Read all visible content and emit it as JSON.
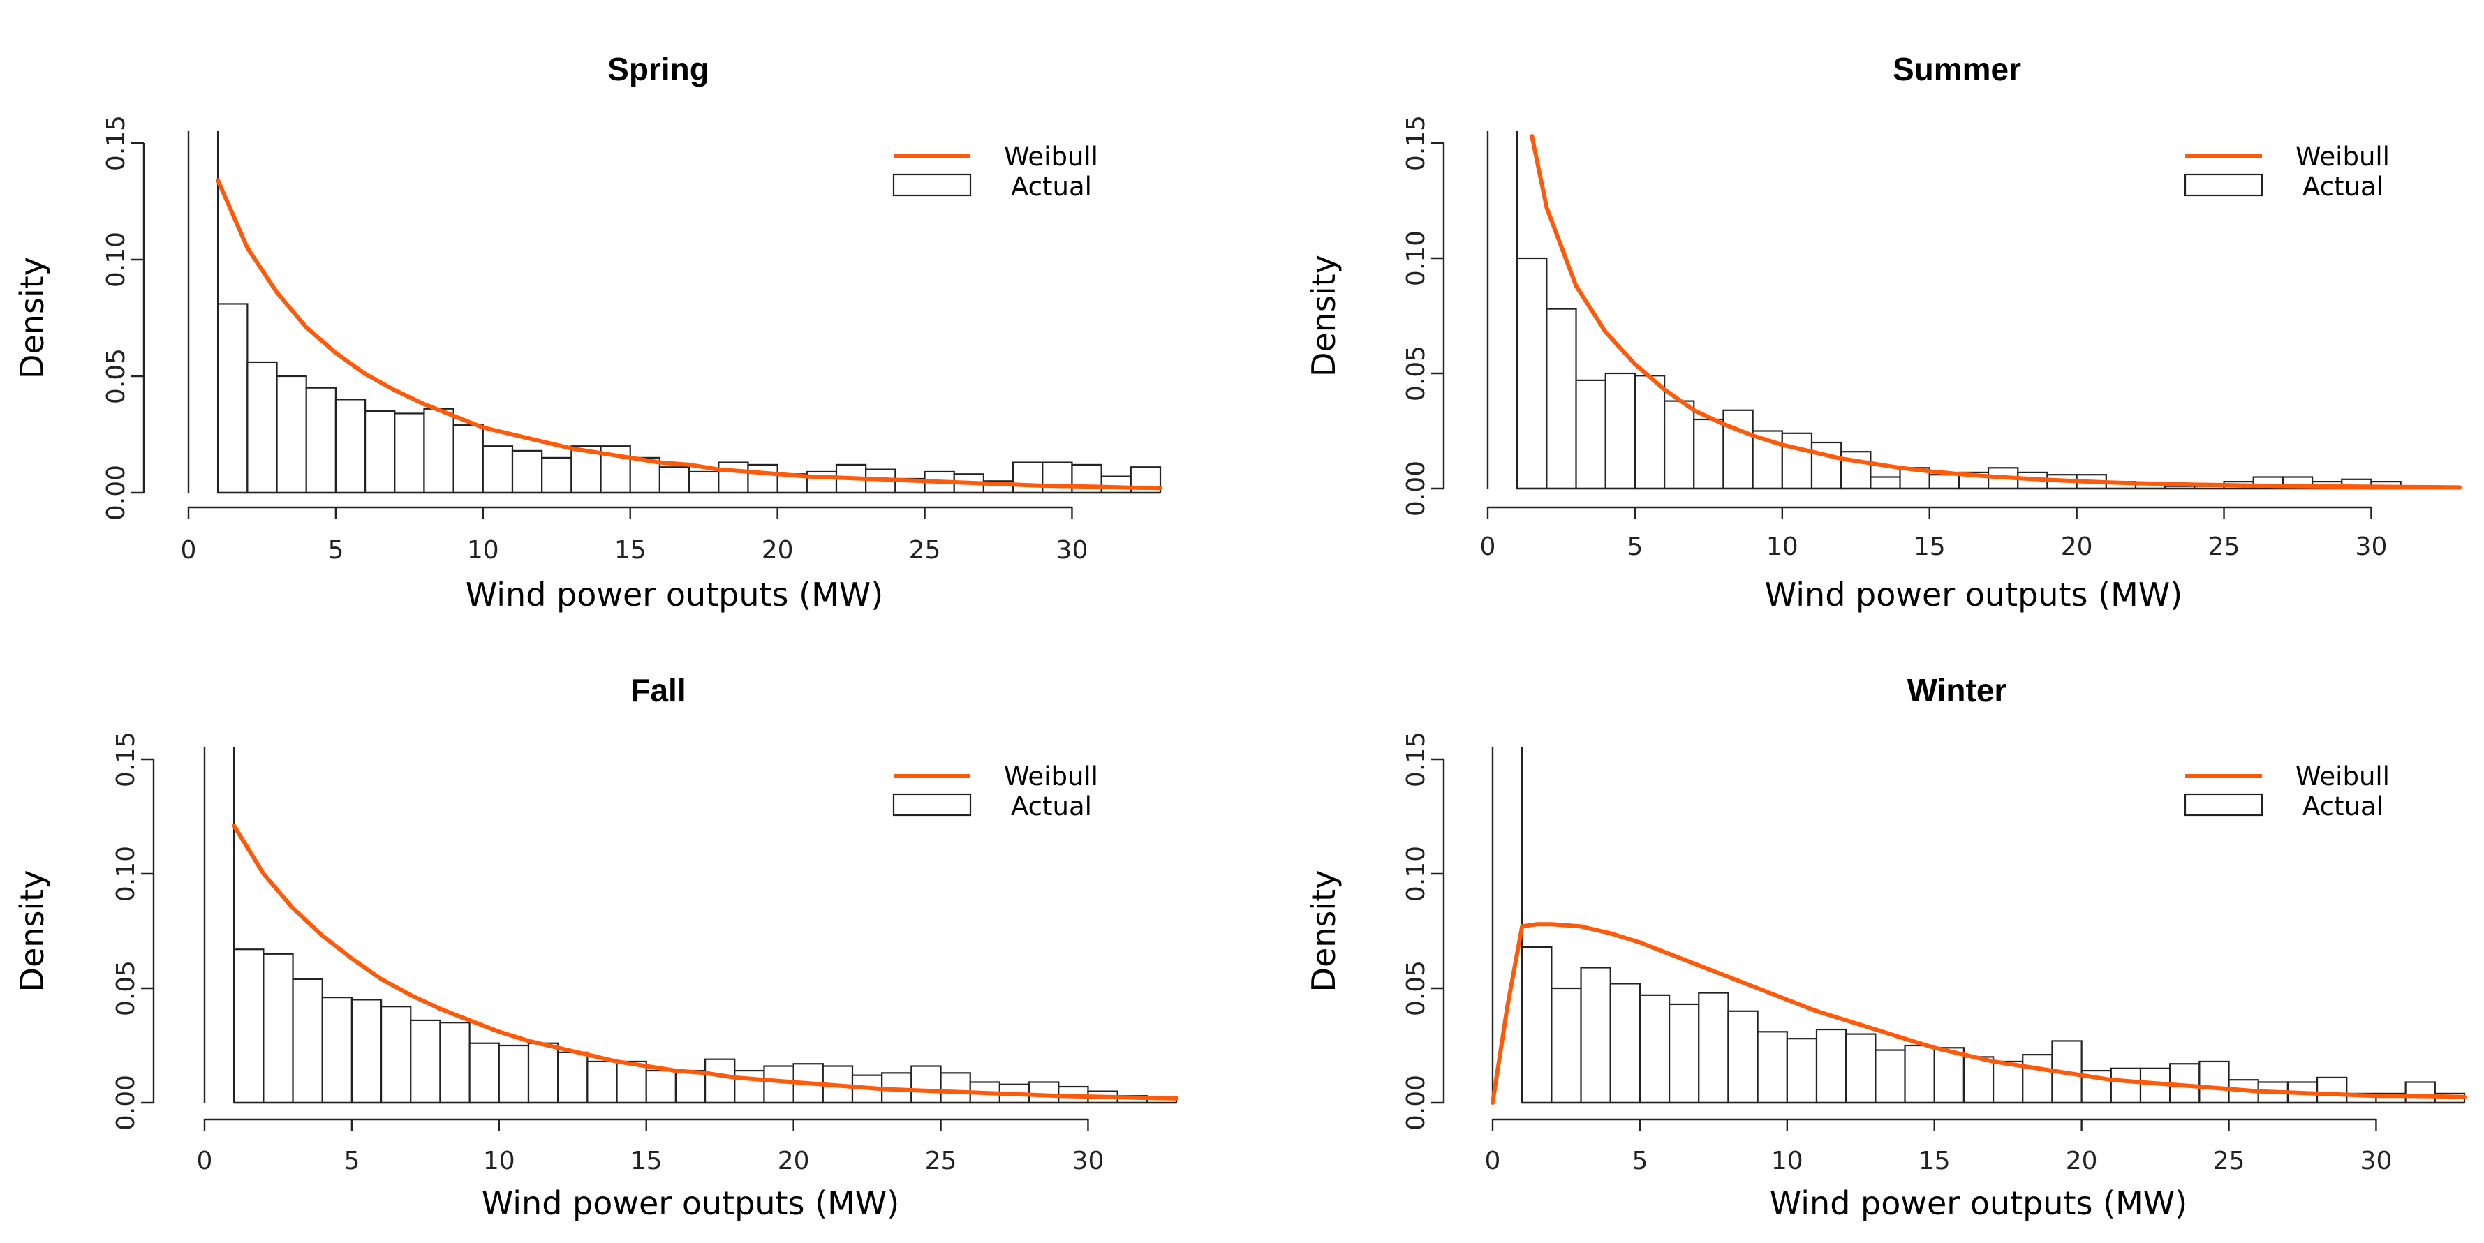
{
  "chart_data": [
    {
      "type": "bar",
      "title": "Spring",
      "xlabel": "Wind power outputs (MW)",
      "ylabel": "Density",
      "xlim": [
        0,
        33
      ],
      "ylim": [
        0,
        0.15
      ],
      "xticks": [
        "0",
        "5",
        "10",
        "15",
        "20",
        "25",
        "30"
      ],
      "yticks": [
        "0.00",
        "0.05",
        "0.10",
        "0.15"
      ],
      "legend": {
        "position": "top-right",
        "entries": [
          {
            "label": "Weibull",
            "kind": "line",
            "color": "#ff5a0a"
          },
          {
            "label": "Actual",
            "kind": "box"
          }
        ]
      },
      "vertical_line_at": 1,
      "bins": {
        "start": 1,
        "width": 1
      },
      "values": [
        0.081,
        0.056,
        0.05,
        0.045,
        0.04,
        0.035,
        0.034,
        0.036,
        0.029,
        0.02,
        0.018,
        0.015,
        0.02,
        0.02,
        0.015,
        0.011,
        0.009,
        0.013,
        0.012,
        0.008,
        0.009,
        0.012,
        0.01,
        0.006,
        0.009,
        0.008,
        0.005,
        0.013,
        0.013,
        0.012,
        0.007,
        0.011
      ],
      "weibull": {
        "x0": 1,
        "x": [
          1,
          2,
          3,
          4,
          5,
          6,
          7,
          8,
          9,
          10,
          11,
          12,
          13,
          14,
          15,
          16,
          17,
          18,
          19,
          20,
          21,
          22,
          23,
          24,
          25,
          26,
          27,
          28,
          29,
          30,
          31,
          32,
          33
        ],
        "y": [
          0.134,
          0.105,
          0.086,
          0.071,
          0.06,
          0.051,
          0.044,
          0.038,
          0.033,
          0.028,
          0.025,
          0.022,
          0.019,
          0.017,
          0.015,
          0.013,
          0.012,
          0.01,
          0.009,
          0.008,
          0.007,
          0.0065,
          0.006,
          0.0055,
          0.005,
          0.0045,
          0.004,
          0.0035,
          0.003,
          0.0028,
          0.0025,
          0.0022,
          0.002
        ]
      }
    },
    {
      "type": "bar",
      "title": "Summer",
      "xlabel": "Wind power outputs (MW)",
      "ylabel": "Density",
      "xlim": [
        0,
        33
      ],
      "ylim": [
        0,
        0.15
      ],
      "xticks": [
        "0",
        "5",
        "10",
        "15",
        "20",
        "25",
        "30"
      ],
      "yticks": [
        "0.00",
        "0.05",
        "0.10",
        "0.15"
      ],
      "legend": {
        "position": "top-right",
        "entries": [
          {
            "label": "Weibull",
            "kind": "line",
            "color": "#ff5a0a"
          },
          {
            "label": "Actual",
            "kind": "box"
          }
        ]
      },
      "vertical_line_at": 1,
      "bins": {
        "start": 1,
        "width": 1
      },
      "values": [
        0.1,
        0.078,
        0.047,
        0.05,
        0.049,
        0.038,
        0.03,
        0.034,
        0.025,
        0.024,
        0.02,
        0.016,
        0.005,
        0.009,
        0.006,
        0.007,
        0.009,
        0.007,
        0.006,
        0.006,
        0.003,
        0.002,
        0.001,
        0.001,
        0.003,
        0.005,
        0.005,
        0.003,
        0.004,
        0.003
      ],
      "weibull": {
        "x0": 1.5,
        "x": [
          1.5,
          2,
          3,
          4,
          5,
          6,
          7,
          8,
          9,
          10,
          11,
          12,
          13,
          14,
          15,
          16,
          17,
          18,
          19,
          20,
          21,
          22,
          23,
          24,
          25,
          26,
          27,
          28,
          29,
          30,
          31,
          32,
          33
        ],
        "y": [
          0.155,
          0.122,
          0.088,
          0.068,
          0.054,
          0.043,
          0.034,
          0.028,
          0.023,
          0.019,
          0.016,
          0.013,
          0.011,
          0.009,
          0.0075,
          0.0063,
          0.0053,
          0.0045,
          0.0038,
          0.0032,
          0.0027,
          0.0023,
          0.002,
          0.0017,
          0.0015,
          0.0013,
          0.0011,
          0.001,
          0.0009,
          0.0008,
          0.0007,
          0.0006,
          0.0005
        ]
      }
    },
    {
      "type": "bar",
      "title": "Fall",
      "xlabel": "Wind power outputs (MW)",
      "ylabel": "Density",
      "xlim": [
        0,
        33
      ],
      "ylim": [
        0,
        0.15
      ],
      "xticks": [
        "0",
        "5",
        "10",
        "15",
        "20",
        "25",
        "30"
      ],
      "yticks": [
        "0.00",
        "0.05",
        "0.10",
        "0.15"
      ],
      "legend": {
        "position": "top-right",
        "entries": [
          {
            "label": "Weibull",
            "kind": "line",
            "color": "#ff5a0a"
          },
          {
            "label": "Actual",
            "kind": "box"
          }
        ]
      },
      "vertical_line_at": 1,
      "bins": {
        "start": 1,
        "width": 1
      },
      "values": [
        0.067,
        0.065,
        0.054,
        0.046,
        0.045,
        0.042,
        0.036,
        0.035,
        0.026,
        0.025,
        0.026,
        0.022,
        0.018,
        0.018,
        0.014,
        0.014,
        0.019,
        0.014,
        0.016,
        0.017,
        0.016,
        0.012,
        0.013,
        0.016,
        0.013,
        0.009,
        0.008,
        0.009,
        0.007,
        0.005,
        0.003,
        0.002
      ],
      "weibull": {
        "x0": 1,
        "x": [
          1,
          2,
          3,
          4,
          5,
          6,
          7,
          8,
          9,
          10,
          11,
          12,
          13,
          14,
          15,
          16,
          17,
          18,
          19,
          20,
          21,
          22,
          23,
          24,
          25,
          26,
          27,
          28,
          29,
          30,
          31,
          32,
          33
        ],
        "y": [
          0.121,
          0.1,
          0.085,
          0.073,
          0.063,
          0.054,
          0.047,
          0.041,
          0.036,
          0.031,
          0.027,
          0.024,
          0.021,
          0.018,
          0.016,
          0.014,
          0.013,
          0.011,
          0.01,
          0.009,
          0.008,
          0.007,
          0.006,
          0.0055,
          0.005,
          0.0045,
          0.004,
          0.0035,
          0.003,
          0.0027,
          0.0024,
          0.0021,
          0.0019
        ]
      }
    },
    {
      "type": "bar",
      "title": "Winter",
      "xlabel": "Wind power outputs (MW)",
      "ylabel": "Density",
      "xlim": [
        0,
        33
      ],
      "ylim": [
        0,
        0.15
      ],
      "xticks": [
        "0",
        "5",
        "10",
        "15",
        "20",
        "25",
        "30"
      ],
      "yticks": [
        "0.00",
        "0.05",
        "0.10",
        "0.15"
      ],
      "legend": {
        "position": "top-right",
        "entries": [
          {
            "label": "Weibull",
            "kind": "line",
            "color": "#ff5a0a"
          },
          {
            "label": "Actual",
            "kind": "box"
          }
        ]
      },
      "vertical_line_at": 1,
      "bins": {
        "start": 1,
        "width": 1
      },
      "values": [
        0.068,
        0.05,
        0.059,
        0.052,
        0.047,
        0.043,
        0.048,
        0.04,
        0.031,
        0.028,
        0.032,
        0.03,
        0.023,
        0.025,
        0.024,
        0.02,
        0.018,
        0.021,
        0.027,
        0.014,
        0.015,
        0.015,
        0.017,
        0.018,
        0.01,
        0.009,
        0.009,
        0.011,
        0.004,
        0.004,
        0.009,
        0.004
      ],
      "weibull": {
        "x0": 0,
        "x": [
          0,
          0.5,
          1,
          1.5,
          2,
          3,
          4,
          5,
          6,
          7,
          8,
          9,
          10,
          11,
          12,
          13,
          14,
          15,
          16,
          17,
          18,
          19,
          20,
          21,
          22,
          23,
          24,
          25,
          26,
          27,
          28,
          29,
          30,
          31,
          32,
          33
        ],
        "y": [
          0,
          0.042,
          0.077,
          0.078,
          0.078,
          0.077,
          0.074,
          0.07,
          0.065,
          0.06,
          0.055,
          0.05,
          0.045,
          0.04,
          0.036,
          0.032,
          0.028,
          0.024,
          0.021,
          0.018,
          0.016,
          0.014,
          0.012,
          0.01,
          0.009,
          0.008,
          0.007,
          0.006,
          0.005,
          0.0045,
          0.004,
          0.0035,
          0.003,
          0.003,
          0.0028,
          0.0025
        ]
      }
    }
  ]
}
